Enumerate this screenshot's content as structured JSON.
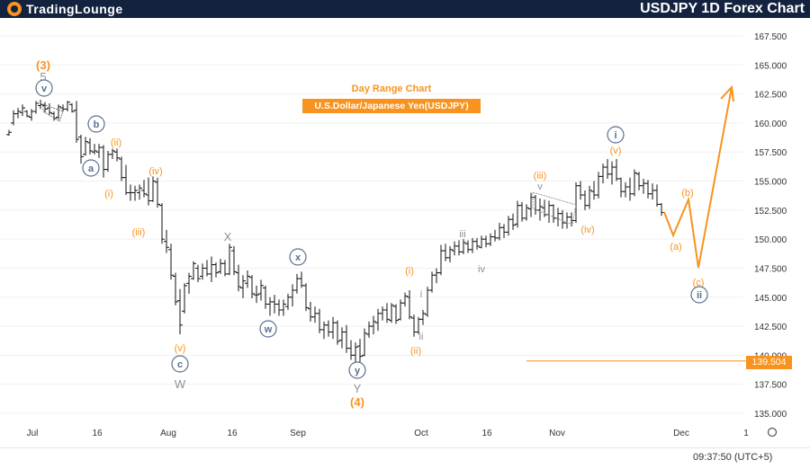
{
  "header": {
    "brand": "TradingLounge",
    "title": "USDJPY 1D Forex Chart"
  },
  "chart": {
    "subtitle": "Day Range Chart",
    "instrument": "U.S.Dollar/Japanese Yen(USDJPY)",
    "price_tag": "139.504",
    "clock": "09:37:50 (UTC+5)"
  },
  "chart_data": {
    "type": "ohlc",
    "ylim": [
      133.5,
      169.5
    ],
    "yticks": [
      "167.500",
      "165.000",
      "162.500",
      "160.000",
      "157.500",
      "155.000",
      "152.500",
      "150.000",
      "147.500",
      "145.000",
      "142.500",
      "140.000",
      "137.500",
      "135.000"
    ],
    "xticks": [
      "Jul",
      "16",
      "Aug",
      "16",
      "Sep",
      "Oct",
      "16",
      "Nov",
      "Dec",
      "1"
    ],
    "levels": [
      {
        "value": 139.504,
        "color": "#f7931e"
      }
    ],
    "colors": {
      "orange": "#f7931e",
      "navy": "#5a6f8f",
      "gray": "#8a8f98",
      "bars": "#111111"
    }
  },
  "labels": {
    "l3": "(3)",
    "l5": "5",
    "lv": "v",
    "lb": "b",
    "la": "a",
    "lii1": "(ii)",
    "li1": "(i)",
    "liv1": "(iv)",
    "liii1": "(iii)",
    "lv2": "(v)",
    "lc": "c",
    "lW": "W",
    "lX": "X",
    "lwc": "w",
    "lxc": "x",
    "lyc": "y",
    "lY": "Y",
    "l4": "(4)",
    "li2": "(i)",
    "li_s": "i",
    "lii_s": "ii",
    "lii2": "(ii)",
    "liii_s": "iii",
    "liv_s": "iv",
    "liii2": "(iii)",
    "lv_s": "v",
    "liv2": "(iv)",
    "lic": "i",
    "lv3": "(v)",
    "la2": "(a)",
    "lb2": "(b)",
    "lc2": "(c)",
    "liic": "ii"
  }
}
